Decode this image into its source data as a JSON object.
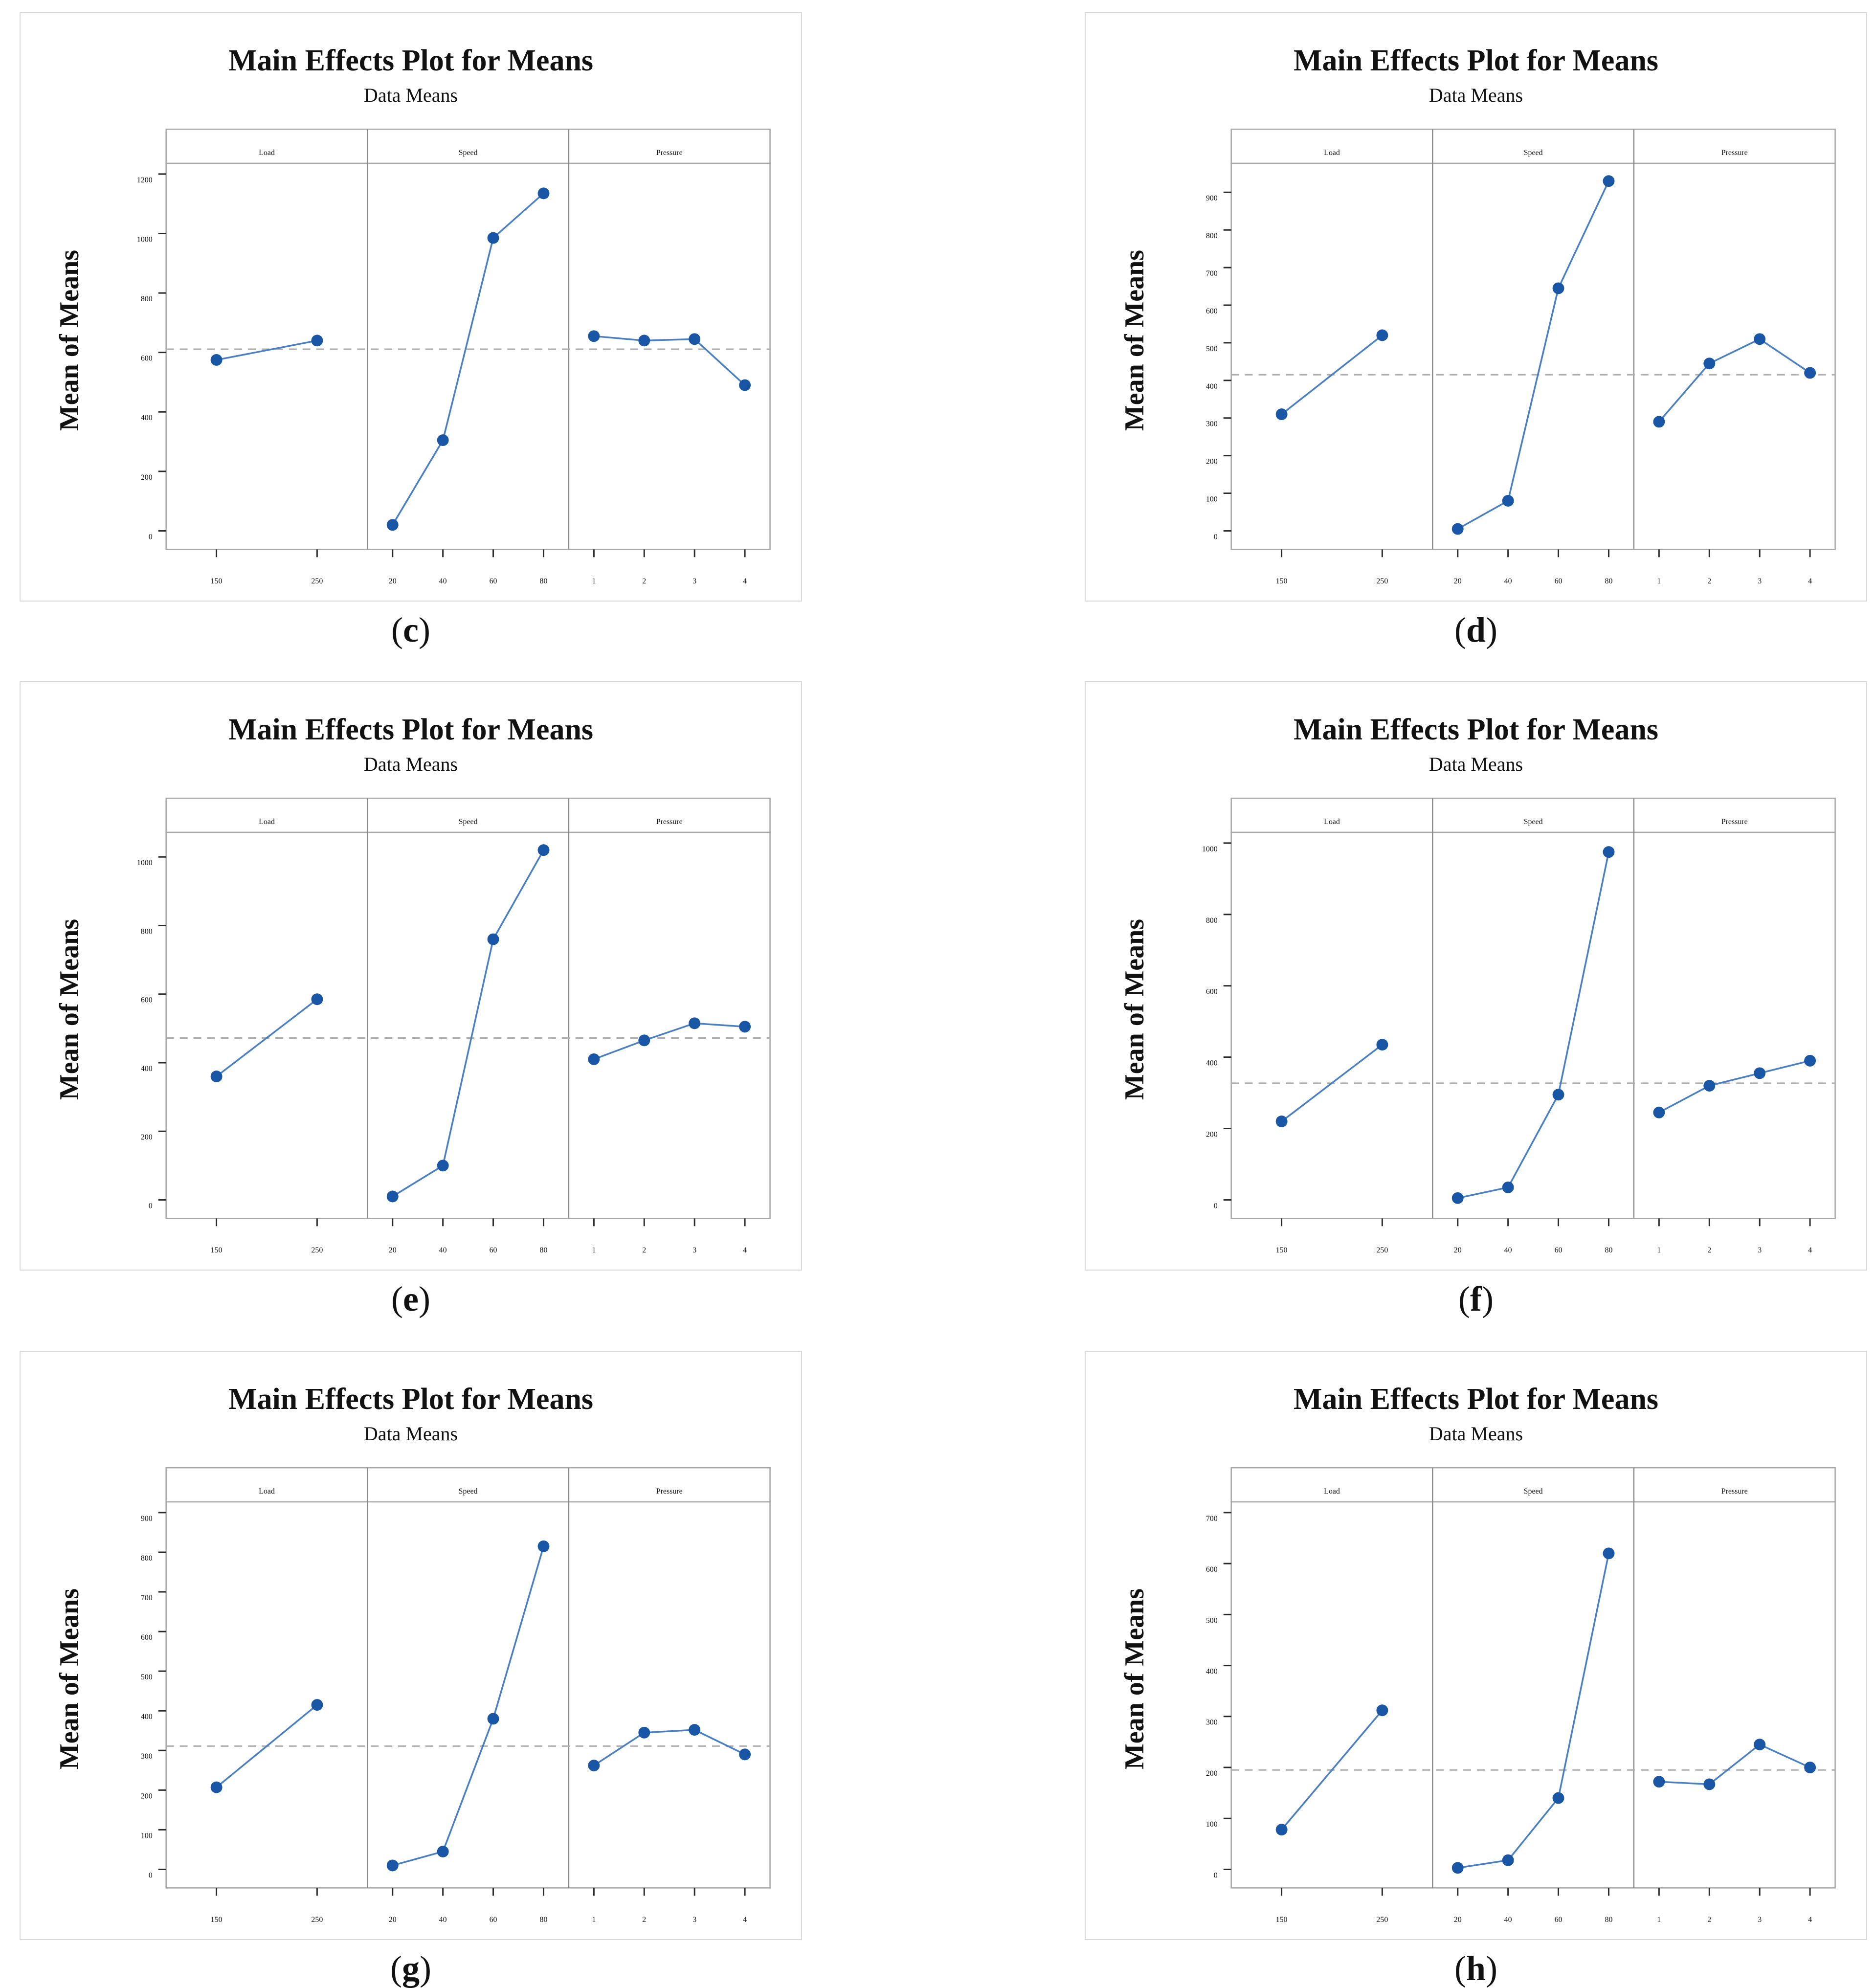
{
  "shared": {
    "title": "Main Effects Plot for Means",
    "subtitle": "Data Means",
    "ylabel": "Mean of Means",
    "x_categories": {
      "Load": [
        "150",
        "250"
      ],
      "Speed": [
        "20",
        "40",
        "60",
        "80"
      ],
      "Pressure": [
        "1",
        "2",
        "3",
        "4"
      ]
    }
  },
  "colors": {
    "marker": "#1956a5",
    "line": "#4b7fc3",
    "frame": "#a6a6a6",
    "separator": "#8a8a8a",
    "dash_line": "#aeaeae",
    "tick": "#2b2b2b",
    "text": "#111111",
    "card_border": "#d9d9d9"
  },
  "chart_data": [
    {
      "id": "c",
      "type": "line",
      "caption_open": "(",
      "caption_letter": "c",
      "caption_close": ")",
      "title": "Main Effects Plot for Means",
      "subtitle": "Data Means",
      "ylabel": "Mean of Means",
      "y_axis": {
        "min_tick": 0,
        "max_tick": 1200,
        "step": 200
      },
      "mean_line": 611,
      "legend": "none",
      "grid": "off",
      "panels": [
        {
          "label": "Load",
          "categories": [
            "150",
            "250"
          ],
          "values": [
            575,
            640
          ]
        },
        {
          "label": "Speed",
          "categories": [
            "20",
            "40",
            "60",
            "80"
          ],
          "values": [
            20,
            305,
            985,
            1135
          ]
        },
        {
          "label": "Pressure",
          "categories": [
            "1",
            "2",
            "3",
            "4"
          ],
          "values": [
            655,
            640,
            645,
            490
          ]
        }
      ]
    },
    {
      "id": "d",
      "type": "line",
      "caption_open": "(",
      "caption_letter": "d",
      "caption_close": ")",
      "title": "Main Effects Plot for Means",
      "subtitle": "Data Means",
      "ylabel": "Mean of Means",
      "y_axis": {
        "min_tick": 0,
        "max_tick": 900,
        "step": 100
      },
      "mean_line": 415,
      "legend": "none",
      "grid": "off",
      "panels": [
        {
          "label": "Load",
          "categories": [
            "150",
            "250"
          ],
          "values": [
            310,
            520
          ]
        },
        {
          "label": "Speed",
          "categories": [
            "20",
            "40",
            "60",
            "80"
          ],
          "values": [
            5,
            80,
            645,
            930
          ]
        },
        {
          "label": "Pressure",
          "categories": [
            "1",
            "2",
            "3",
            "4"
          ],
          "values": [
            290,
            445,
            510,
            420
          ]
        }
      ]
    },
    {
      "id": "e",
      "type": "line",
      "caption_open": "(",
      "caption_letter": "e",
      "caption_close": ")",
      "title": "Main Effects Plot for Means",
      "subtitle": "Data Means",
      "ylabel": "Mean of Means",
      "y_axis": {
        "min_tick": 0,
        "max_tick": 1000,
        "step": 200
      },
      "mean_line": 472,
      "legend": "none",
      "grid": "off",
      "panels": [
        {
          "label": "Load",
          "categories": [
            "150",
            "250"
          ],
          "values": [
            360,
            585
          ]
        },
        {
          "label": "Speed",
          "categories": [
            "20",
            "40",
            "60",
            "80"
          ],
          "values": [
            10,
            100,
            760,
            1020
          ]
        },
        {
          "label": "Pressure",
          "categories": [
            "1",
            "2",
            "3",
            "4"
          ],
          "values": [
            410,
            465,
            515,
            505
          ]
        }
      ]
    },
    {
      "id": "f",
      "type": "line",
      "caption_open": "(",
      "caption_letter": "f",
      "caption_close": ")",
      "title": "Main Effects Plot for Means",
      "subtitle": "Data Means",
      "ylabel": "Mean of Means",
      "y_axis": {
        "min_tick": 0,
        "max_tick": 1000,
        "step": 200
      },
      "mean_line": 327,
      "legend": "none",
      "grid": "off",
      "panels": [
        {
          "label": "Load",
          "categories": [
            "150",
            "250"
          ],
          "values": [
            220,
            435
          ]
        },
        {
          "label": "Speed",
          "categories": [
            "20",
            "40",
            "60",
            "80"
          ],
          "values": [
            5,
            35,
            295,
            975
          ]
        },
        {
          "label": "Pressure",
          "categories": [
            "1",
            "2",
            "3",
            "4"
          ],
          "values": [
            245,
            320,
            355,
            390
          ]
        }
      ]
    },
    {
      "id": "g",
      "type": "line",
      "caption_open": "(",
      "caption_letter": "g",
      "caption_close": ")",
      "title": "Main Effects Plot for Means",
      "subtitle": "Data Means",
      "ylabel": "Mean of Means",
      "y_axis": {
        "min_tick": 0,
        "max_tick": 900,
        "step": 100
      },
      "mean_line": 311,
      "legend": "none",
      "grid": "off",
      "panels": [
        {
          "label": "Load",
          "categories": [
            "150",
            "250"
          ],
          "values": [
            207,
            415
          ]
        },
        {
          "label": "Speed",
          "categories": [
            "20",
            "40",
            "60",
            "80"
          ],
          "values": [
            10,
            45,
            380,
            815
          ]
        },
        {
          "label": "Pressure",
          "categories": [
            "1",
            "2",
            "3",
            "4"
          ],
          "values": [
            262,
            345,
            352,
            290
          ]
        }
      ]
    },
    {
      "id": "h",
      "type": "line",
      "caption_open": "(",
      "caption_letter": "h",
      "caption_close": ")",
      "title": "Main Effects Plot for Means",
      "subtitle": "Data Means",
      "ylabel": "Mean of Means",
      "y_axis": {
        "min_tick": 0,
        "max_tick": 700,
        "step": 100
      },
      "mean_line": 195,
      "legend": "none",
      "grid": "off",
      "panels": [
        {
          "label": "Load",
          "categories": [
            "150",
            "250"
          ],
          "values": [
            78,
            312
          ]
        },
        {
          "label": "Speed",
          "categories": [
            "20",
            "40",
            "60",
            "80"
          ],
          "values": [
            3,
            18,
            140,
            620
          ]
        },
        {
          "label": "Pressure",
          "categories": [
            "1",
            "2",
            "3",
            "4"
          ],
          "values": [
            172,
            167,
            245,
            200
          ]
        }
      ]
    }
  ]
}
